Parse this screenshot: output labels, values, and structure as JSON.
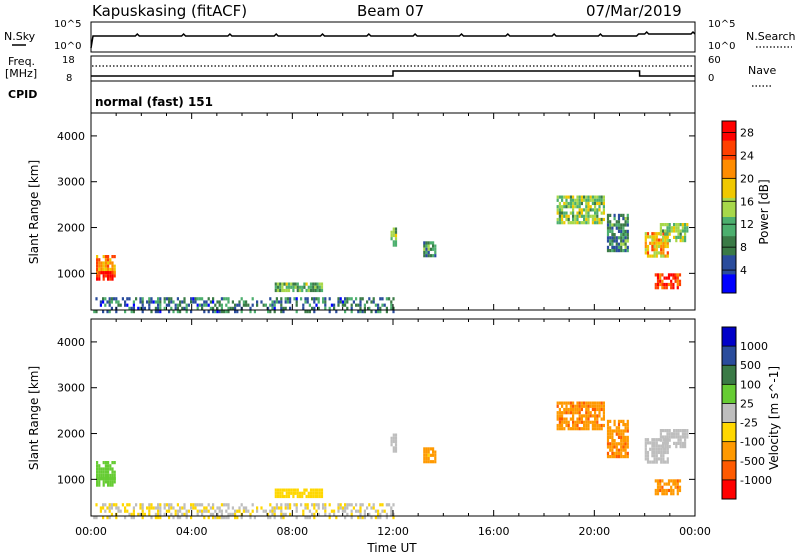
{
  "header": {
    "station": "Kapuskasing (fitACF)",
    "beam": "Beam 07",
    "date": "07/Mar/2019"
  },
  "param_panels": {
    "nsky_label": "N.Sky",
    "nsky_ticks": [
      "10^5",
      "10^0"
    ],
    "nsearch_label": "N.Search",
    "nsearch_ticks": [
      "10^5",
      "10^0"
    ],
    "freq_label": "Freq.",
    "freq_unit": "[MHz]",
    "freq_ticks": [
      "18",
      "8"
    ],
    "nave_label": "Nave",
    "nave_ticks": [
      "60",
      "0"
    ],
    "cpid_label": "CPID",
    "cpid_text": "normal (fast) 151"
  },
  "chart_data": [
    {
      "type": "heatmap",
      "title": "",
      "xlabel": "Time UT",
      "ylabel": "Slant Range [km]",
      "x_ticks": [
        "00:00",
        "04:00",
        "08:00",
        "12:00",
        "16:00",
        "20:00",
        "00:00"
      ],
      "xlim_hours": [
        0,
        24
      ],
      "y_ticks": [
        1000,
        2000,
        3000,
        4000
      ],
      "ylim": [
        200,
        4500
      ],
      "colorbar_label": "Power [dB]",
      "colorbar_ticks": [
        4,
        8,
        12,
        16,
        20,
        24,
        28
      ],
      "colorbar_range": [
        0,
        30
      ],
      "colorscale": [
        "#0000ff",
        "#2a4c9c",
        "#3a7a46",
        "#4caf6e",
        "#a7d84a",
        "#f0c800",
        "#ff8c00",
        "#ff4000",
        "#ff0000"
      ],
      "regions": [
        {
          "t": [
            0.2,
            0.9
          ],
          "r": [
            1050,
            1400
          ],
          "v": 22
        },
        {
          "t": [
            0.2,
            0.9
          ],
          "r": [
            850,
            1050
          ],
          "v": 27
        },
        {
          "t": [
            0.0,
            12.0
          ],
          "r": [
            200,
            480
          ],
          "v": 8
        },
        {
          "t": [
            7.3,
            9.2
          ],
          "r": [
            600,
            800
          ],
          "v": 12
        },
        {
          "t": [
            11.9,
            12.1
          ],
          "r": [
            1600,
            2000
          ],
          "v": 14
        },
        {
          "t": [
            13.2,
            13.7
          ],
          "r": [
            1400,
            1700
          ],
          "v": 10
        },
        {
          "t": [
            18.5,
            20.4
          ],
          "r": [
            2100,
            2700
          ],
          "v": 14
        },
        {
          "t": [
            20.5,
            21.3
          ],
          "r": [
            1500,
            2300
          ],
          "v": 9
        },
        {
          "t": [
            22.0,
            22.9
          ],
          "r": [
            1400,
            1900
          ],
          "v": 20
        },
        {
          "t": [
            22.6,
            23.7
          ],
          "r": [
            1700,
            2100
          ],
          "v": 14
        },
        {
          "t": [
            22.4,
            23.4
          ],
          "r": [
            700,
            1000
          ],
          "v": 25
        }
      ]
    },
    {
      "type": "heatmap",
      "title": "",
      "xlabel": "Time UT",
      "ylabel": "Slant Range [km]",
      "x_ticks": [
        "00:00",
        "04:00",
        "08:00",
        "12:00",
        "16:00",
        "20:00",
        "00:00"
      ],
      "xlim_hours": [
        0,
        24
      ],
      "y_ticks": [
        1000,
        2000,
        3000,
        4000
      ],
      "ylim": [
        200,
        4500
      ],
      "colorbar_label": "Velocity [m s^-1]",
      "colorbar_ticks": [
        "1000",
        "500",
        "100",
        "25",
        "-25",
        "-100",
        "-500",
        "-1000"
      ],
      "colorscale": [
        "#0000c8",
        "#2a4c9c",
        "#3a7a46",
        "#66cc33",
        "#bebebe",
        "#ffd700",
        "#ff9900",
        "#ff5a00",
        "#ff0000"
      ],
      "regions": [
        {
          "t": [
            0.2,
            0.9
          ],
          "r": [
            1050,
            1400
          ],
          "v": 60
        },
        {
          "t": [
            0.2,
            0.9
          ],
          "r": [
            850,
            1050
          ],
          "v": 60
        },
        {
          "t": [
            0.0,
            12.0
          ],
          "r": [
            200,
            480
          ],
          "v": -20
        },
        {
          "t": [
            7.3,
            9.2
          ],
          "r": [
            600,
            800
          ],
          "v": -60
        },
        {
          "t": [
            11.9,
            12.1
          ],
          "r": [
            1600,
            2000
          ],
          "v": 0
        },
        {
          "t": [
            13.2,
            13.7
          ],
          "r": [
            1400,
            1700
          ],
          "v": -150
        },
        {
          "t": [
            18.5,
            20.4
          ],
          "r": [
            2100,
            2700
          ],
          "v": -400
        },
        {
          "t": [
            20.5,
            21.3
          ],
          "r": [
            1500,
            2300
          ],
          "v": -400
        },
        {
          "t": [
            22.0,
            22.9
          ],
          "r": [
            1400,
            1900
          ],
          "v": 0
        },
        {
          "t": [
            22.6,
            23.7
          ],
          "r": [
            1700,
            2100
          ],
          "v": 0
        },
        {
          "t": [
            22.4,
            23.4
          ],
          "r": [
            700,
            1000
          ],
          "v": -400
        }
      ]
    }
  ]
}
